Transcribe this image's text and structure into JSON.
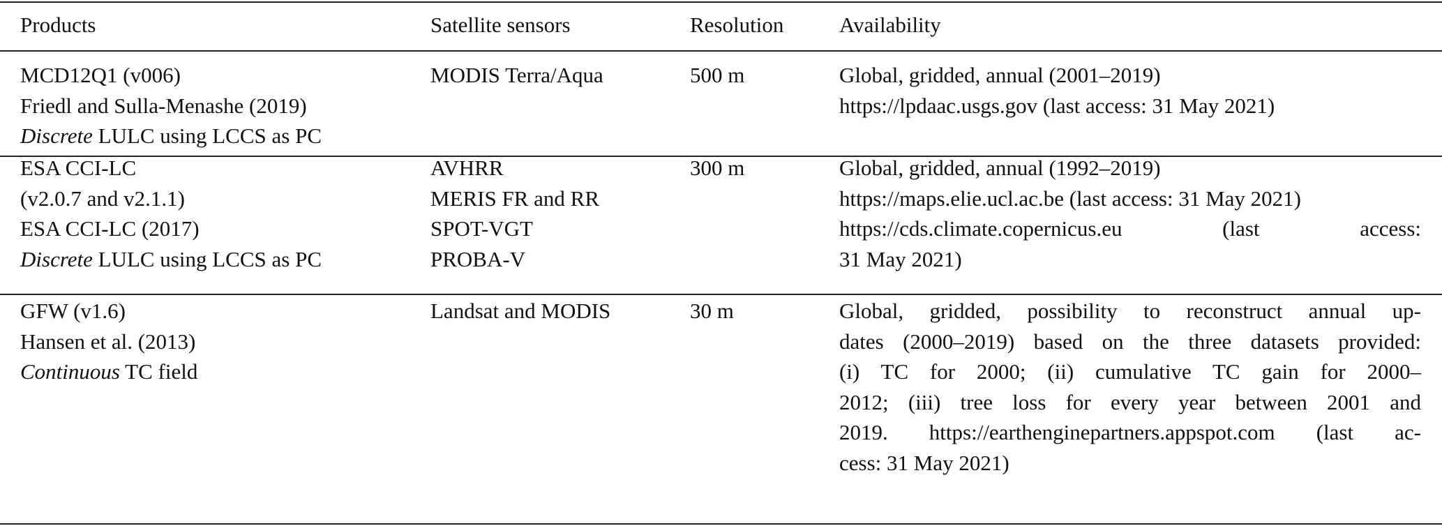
{
  "headers": [
    "Products",
    "Satellite sensors",
    "Resolution",
    "Availability"
  ],
  "rows": [
    {
      "products": [
        "MCD12Q1 (v006)",
        "Friedl and Sulla-Menashe (2019)"
      ],
      "products_italic": "Discrete",
      "products_tail": " LULC using LCCS as PC",
      "sensors": [
        "MODIS Terra/Aqua"
      ],
      "resolution": "500 m",
      "availability": [
        "Global, gridded, annual (2001–2019)",
        "https://lpdaac.usgs.gov (last access: 31 May 2021)"
      ],
      "justified": [
        false,
        false
      ]
    },
    {
      "products": [
        "ESA CCI-LC",
        "(v2.0.7 and v2.1.1)",
        "ESA CCI-LC (2017)"
      ],
      "products_italic": "Discrete",
      "products_tail": " LULC using LCCS as PC",
      "sensors": [
        "AVHRR",
        "MERIS FR and RR",
        "SPOT-VGT",
        "PROBA-V"
      ],
      "resolution": "300 m",
      "availability": [
        "Global, gridded, annual (1992–2019)",
        "https://maps.elie.ucl.ac.be (last access: 31 May 2021)",
        "https://cds.climate.copernicus.eu (last access:",
        "31 May 2021)"
      ],
      "justified": [
        false,
        false,
        true,
        false
      ]
    },
    {
      "products": [
        "GFW (v1.6)",
        "Hansen et al. (2013)"
      ],
      "products_italic": "Continuous",
      "products_tail": " TC field",
      "sensors": [
        "Landsat and MODIS"
      ],
      "resolution": "30 m",
      "availability": [
        "Global, gridded, possibility to reconstruct annual up-",
        "dates (2000–2019) based on the three datasets provided:",
        "(i) TC for 2000; (ii) cumulative TC gain for 2000–",
        "2012; (iii) tree loss for every year between 2001 and",
        "2019. https://earthenginepartners.appspot.com (last ac-",
        "cess: 31 May 2021)"
      ],
      "justified": [
        true,
        true,
        true,
        true,
        true,
        false
      ]
    }
  ]
}
